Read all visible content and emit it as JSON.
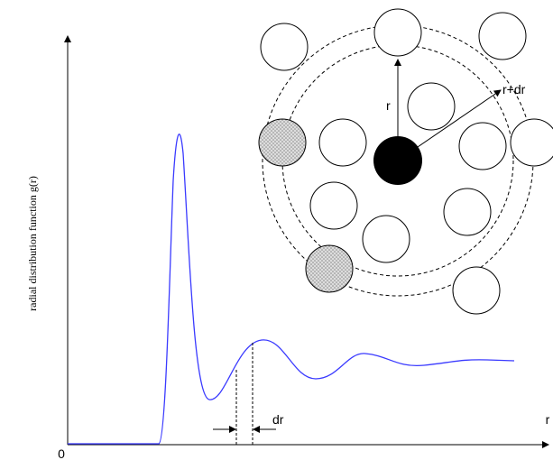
{
  "axes": {
    "y_label": "radial distribution function g(r)",
    "origin_label": "0",
    "x_label": "r"
  },
  "annotations": {
    "dr": "dr",
    "r": "r",
    "r_plus_dr": "r+dr"
  }
}
